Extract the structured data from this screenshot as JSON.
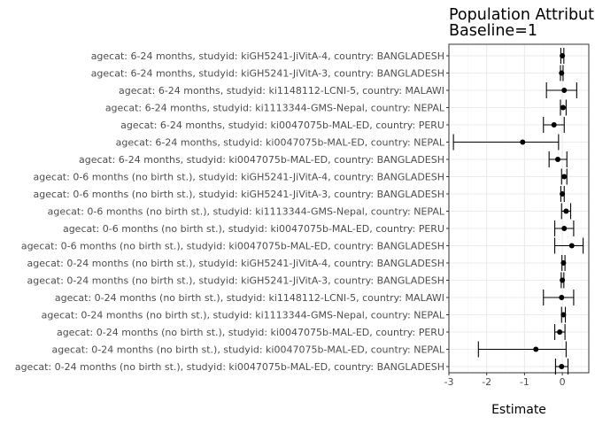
{
  "chart_data": {
    "type": "scatter",
    "subtype": "point-range (forest plot)",
    "title_lines": [
      "Population Attributable",
      "Baseline=1"
    ],
    "xlabel": "Estimate",
    "ylabel": "",
    "xlim": [
      -3,
      0.7
    ],
    "xticks": [
      -3,
      -2,
      -1,
      0
    ],
    "grid": true,
    "theme": "black-and-white panel",
    "point_color": "#000000",
    "grid_major_color": "#ebebeb",
    "grid_minor_color": "#f4f4f4",
    "rows": [
      {
        "label": "agecat: 6-24 months, studyid: kiGH5241-JiVitA-4, country: BANGLADESH",
        "estimate": 0.0,
        "lower": -0.04,
        "upper": 0.04
      },
      {
        "label": "agecat: 6-24 months, studyid: kiGH5241-JiVitA-3, country: BANGLADESH",
        "estimate": -0.02,
        "lower": -0.05,
        "upper": 0.02
      },
      {
        "label": "agecat: 6-24 months, studyid: ki1148112-LCNI-5, country: MALAWI",
        "estimate": 0.05,
        "lower": -0.42,
        "upper": 0.38
      },
      {
        "label": "agecat: 6-24 months, studyid: ki1113344-GMS-Nepal, country: NEPAL",
        "estimate": 0.02,
        "lower": -0.05,
        "upper": 0.1
      },
      {
        "label": "agecat: 6-24 months, studyid: ki0047075b-MAL-ED, country: PERU",
        "estimate": -0.22,
        "lower": -0.5,
        "upper": 0.05
      },
      {
        "label": "agecat: 6-24 months, studyid: ki0047075b-MAL-ED, country: NEPAL",
        "estimate": -1.05,
        "lower": -2.88,
        "upper": -0.1
      },
      {
        "label": "agecat: 6-24 months, studyid: ki0047075b-MAL-ED, country: BANGLADESH",
        "estimate": -0.12,
        "lower": -0.35,
        "upper": 0.12
      },
      {
        "label": "agecat: 0-6 months (no birth st.), studyid: kiGH5241-JiVitA-4, country: BANGLADESH",
        "estimate": 0.05,
        "lower": -0.02,
        "upper": 0.12
      },
      {
        "label": "agecat: 0-6 months (no birth st.), studyid: kiGH5241-JiVitA-3, country: BANGLADESH",
        "estimate": 0.0,
        "lower": -0.04,
        "upper": 0.05
      },
      {
        "label": "agecat: 0-6 months (no birth st.), studyid: ki1113344-GMS-Nepal, country: NEPAL",
        "estimate": 0.1,
        "lower": -0.02,
        "upper": 0.22
      },
      {
        "label": "agecat: 0-6 months (no birth st.), studyid: ki0047075b-MAL-ED, country: PERU",
        "estimate": 0.05,
        "lower": -0.2,
        "upper": 0.3
      },
      {
        "label": "agecat: 0-6 months (no birth st.), studyid: ki0047075b-MAL-ED, country: BANGLADESH",
        "estimate": 0.25,
        "lower": -0.2,
        "upper": 0.55
      },
      {
        "label": "agecat: 0-24 months (no birth st.), studyid: kiGH5241-JiVitA-4, country: BANGLADESH",
        "estimate": 0.03,
        "lower": -0.01,
        "upper": 0.07
      },
      {
        "label": "agecat: 0-24 months (no birth st.), studyid: kiGH5241-JiVitA-3, country: BANGLADESH",
        "estimate": 0.0,
        "lower": -0.03,
        "upper": 0.04
      },
      {
        "label": "agecat: 0-24 months (no birth st.), studyid: ki1148112-LCNI-5, country: MALAWI",
        "estimate": -0.02,
        "lower": -0.5,
        "upper": 0.3
      },
      {
        "label": "agecat: 0-24 months (no birth st.), studyid: ki1113344-GMS-Nepal, country: NEPAL",
        "estimate": 0.03,
        "lower": -0.02,
        "upper": 0.08
      },
      {
        "label": "agecat: 0-24 months (no birth st.), studyid: ki0047075b-MAL-ED, country: PERU",
        "estimate": -0.07,
        "lower": -0.2,
        "upper": 0.07
      },
      {
        "label": "agecat: 0-24 months (no birth st.), studyid: ki0047075b-MAL-ED, country: NEPAL",
        "estimate": -0.7,
        "lower": -2.22,
        "upper": 0.1
      },
      {
        "label": "agecat: 0-24 months (no birth st.), studyid: ki0047075b-MAL-ED, country: BANGLADESH",
        "estimate": -0.02,
        "lower": -0.18,
        "upper": 0.15
      }
    ]
  }
}
